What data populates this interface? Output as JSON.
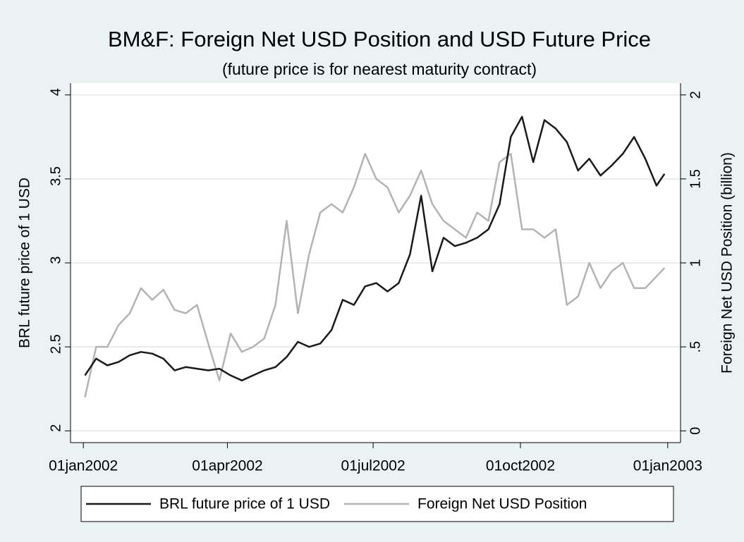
{
  "chart_data": {
    "type": "line",
    "title": "BM&F: Foreign Net USD Position and USD Future Price",
    "subtitle": "(future price is for nearest maturity contract)",
    "y_label": "BRL future price of 1 USD",
    "y2_label": "Foreign Net USD Position (billion)",
    "x": [
      "2002-01-02",
      "2002-01-09",
      "2002-01-16",
      "2002-01-23",
      "2002-01-30",
      "2002-02-06",
      "2002-02-13",
      "2002-02-20",
      "2002-02-27",
      "2002-03-06",
      "2002-03-13",
      "2002-03-20",
      "2002-03-27",
      "2002-04-03",
      "2002-04-10",
      "2002-04-17",
      "2002-04-24",
      "2002-05-01",
      "2002-05-08",
      "2002-05-15",
      "2002-05-22",
      "2002-05-29",
      "2002-06-05",
      "2002-06-12",
      "2002-06-19",
      "2002-06-26",
      "2002-07-03",
      "2002-07-10",
      "2002-07-17",
      "2002-07-24",
      "2002-07-31",
      "2002-08-07",
      "2002-08-14",
      "2002-08-21",
      "2002-08-28",
      "2002-09-04",
      "2002-09-11",
      "2002-09-18",
      "2002-09-25",
      "2002-10-02",
      "2002-10-09",
      "2002-10-16",
      "2002-10-23",
      "2002-10-30",
      "2002-11-06",
      "2002-11-13",
      "2002-11-20",
      "2002-11-27",
      "2002-12-04",
      "2002-12-11",
      "2002-12-18",
      "2002-12-25",
      "2002-12-30"
    ],
    "series": [
      {
        "name": "BRL future price of 1 USD",
        "color": "#1a1a1a",
        "axis": "y",
        "values": [
          2.33,
          2.43,
          2.39,
          2.41,
          2.45,
          2.47,
          2.46,
          2.43,
          2.36,
          2.38,
          2.37,
          2.36,
          2.37,
          2.33,
          2.3,
          2.33,
          2.36,
          2.38,
          2.44,
          2.53,
          2.5,
          2.52,
          2.6,
          2.78,
          2.75,
          2.86,
          2.88,
          2.83,
          2.88,
          3.05,
          3.4,
          2.95,
          3.15,
          3.1,
          3.12,
          3.15,
          3.2,
          3.35,
          3.75,
          3.87,
          3.6,
          3.85,
          3.8,
          3.72,
          3.55,
          3.62,
          3.52,
          3.58,
          3.65,
          3.75,
          3.62,
          3.46,
          3.53
        ]
      },
      {
        "name": "Foreign Net USD Position",
        "color": "#b3b3b3",
        "axis": "y2",
        "values": [
          0.2,
          0.5,
          0.5,
          0.63,
          0.7,
          0.85,
          0.78,
          0.84,
          0.72,
          0.7,
          0.75,
          0.52,
          0.3,
          0.58,
          0.47,
          0.5,
          0.55,
          0.75,
          1.25,
          0.7,
          1.05,
          1.3,
          1.35,
          1.3,
          1.45,
          1.65,
          1.5,
          1.45,
          1.3,
          1.4,
          1.55,
          1.35,
          1.25,
          1.2,
          1.15,
          1.3,
          1.25,
          1.6,
          1.65,
          1.2,
          1.2,
          1.15,
          1.2,
          0.75,
          0.8,
          1.0,
          0.85,
          0.95,
          1.0,
          0.85,
          0.85,
          0.92,
          0.97
        ]
      }
    ],
    "xlim": [
      "2001-12-24",
      "2003-01-09"
    ],
    "xticks": [
      {
        "value": "2002-01-01",
        "label": "01jan2002"
      },
      {
        "value": "2002-04-01",
        "label": "01apr2002"
      },
      {
        "value": "2002-07-01",
        "label": "01jul2002"
      },
      {
        "value": "2002-10-01",
        "label": "01oct2002"
      },
      {
        "value": "2003-01-01",
        "label": "01jan2003"
      }
    ],
    "ylim": [
      1.93,
      4.07
    ],
    "yticks": [
      2,
      2.5,
      3,
      3.5,
      4
    ],
    "y2lim": [
      -0.07,
      2.07
    ],
    "y2ticks": [
      0,
      {
        "value": 0.5,
        "label": ".5"
      },
      1,
      1.5,
      2
    ],
    "grid": true,
    "legend": "bottom"
  }
}
